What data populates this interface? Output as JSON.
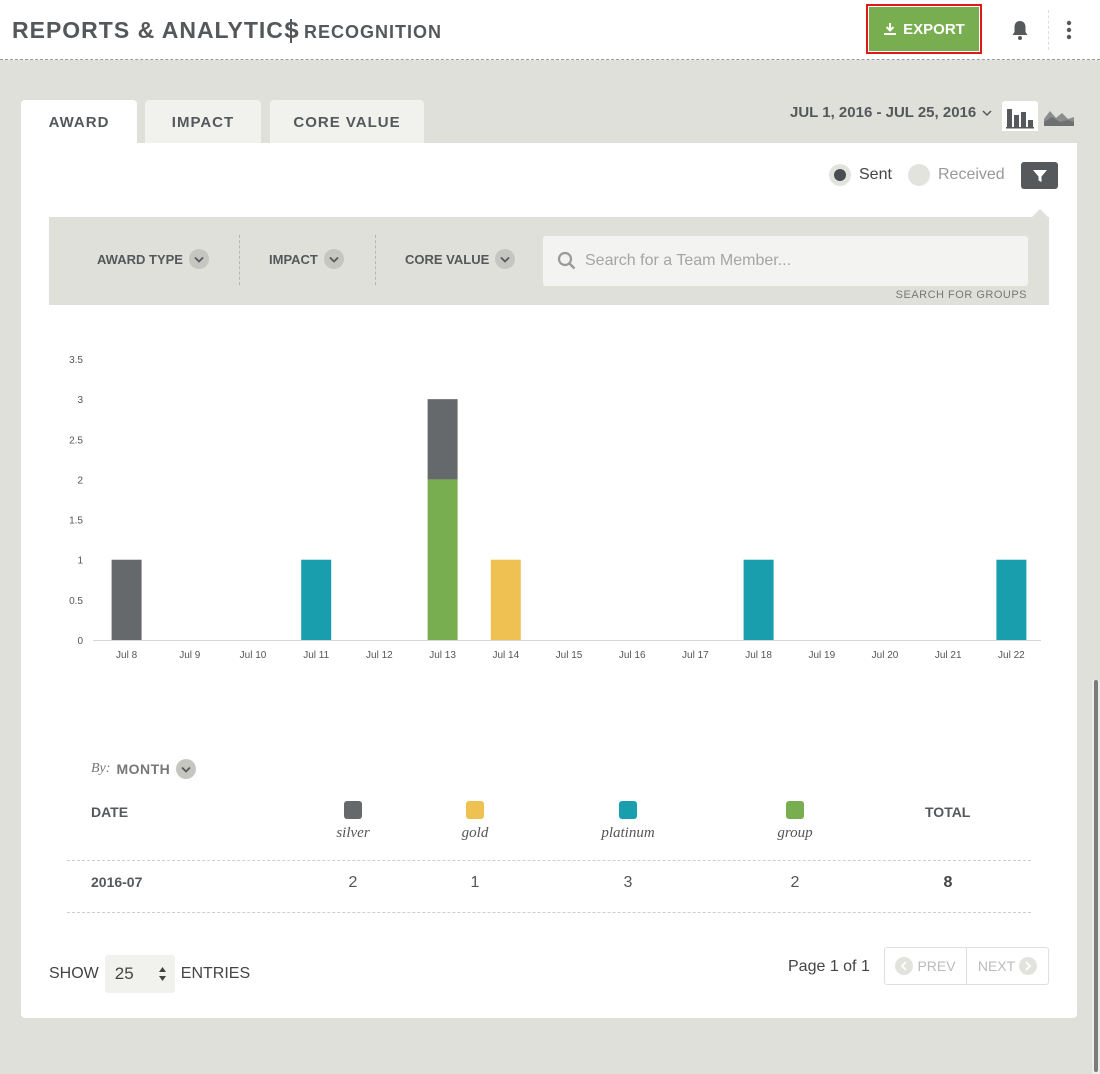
{
  "header": {
    "title": "REPORTS & ANALYTICS",
    "subtitle": "RECOGNITION",
    "export_label": "EXPORT",
    "bell_icon": "bell-icon",
    "menu_icon": "more-vertical-icon"
  },
  "tabs": [
    {
      "label": "AWARD",
      "active": true
    },
    {
      "label": "IMPACT",
      "active": false
    },
    {
      "label": "CORE VALUE",
      "active": false
    }
  ],
  "date_range": "JUL 1, 2016 - JUL 25, 2016",
  "view_toggle": {
    "bar_icon": "bar-chart-icon",
    "area_icon": "area-chart-icon",
    "active": "bar"
  },
  "direction": {
    "sent_label": "Sent",
    "received_label": "Received",
    "selected": "Sent"
  },
  "filters": {
    "award_type": "AWARD TYPE",
    "impact": "IMPACT",
    "core_value": "CORE VALUE",
    "search_placeholder": "Search for a Team Member...",
    "search_groups": "SEARCH FOR GROUPS"
  },
  "chart_data": {
    "type": "bar",
    "stacked": true,
    "categories": [
      "Jul 8",
      "Jul 9",
      "Jul 10",
      "Jul 11",
      "Jul 12",
      "Jul 13",
      "Jul 14",
      "Jul 15",
      "Jul 16",
      "Jul 17",
      "Jul 18",
      "Jul 19",
      "Jul 20",
      "Jul 21",
      "Jul 22"
    ],
    "series": [
      {
        "name": "silver",
        "color": "#66696c",
        "values": [
          1,
          0,
          0,
          0,
          0,
          1,
          0,
          0,
          0,
          0,
          0,
          0,
          0,
          0,
          0
        ]
      },
      {
        "name": "gold",
        "color": "#efc153",
        "values": [
          0,
          0,
          0,
          0,
          0,
          0,
          1,
          0,
          0,
          0,
          0,
          0,
          0,
          0,
          0
        ]
      },
      {
        "name": "platinum",
        "color": "#199eae",
        "values": [
          0,
          0,
          0,
          1,
          0,
          0,
          0,
          0,
          0,
          0,
          1,
          0,
          0,
          0,
          1
        ]
      },
      {
        "name": "group",
        "color": "#78ad50",
        "values": [
          0,
          0,
          0,
          0,
          0,
          2,
          0,
          0,
          0,
          0,
          0,
          0,
          0,
          0,
          0
        ]
      }
    ],
    "yticks": [
      "0",
      "0.5",
      "1",
      "1.5",
      "2",
      "2.5",
      "3",
      "3.5"
    ],
    "ylim": [
      0,
      3.5
    ],
    "grid": false
  },
  "group_by": {
    "prefix": "By:",
    "value": "MONTH"
  },
  "table": {
    "date_header": "DATE",
    "total_header": "TOTAL",
    "legend": [
      {
        "label": "silver",
        "color": "#66696c"
      },
      {
        "label": "gold",
        "color": "#efc153"
      },
      {
        "label": "platinum",
        "color": "#199eae"
      },
      {
        "label": "group",
        "color": "#78ad50"
      }
    ],
    "rows": [
      {
        "date": "2016-07",
        "silver": "2",
        "gold": "1",
        "platinum": "3",
        "group": "2",
        "total": "8"
      }
    ]
  },
  "pagination": {
    "show_label": "SHOW",
    "entries_value": "25",
    "entries_label": "ENTRIES",
    "page_info": "Page 1 of 1",
    "prev_label": "PREV",
    "next_label": "NEXT"
  }
}
